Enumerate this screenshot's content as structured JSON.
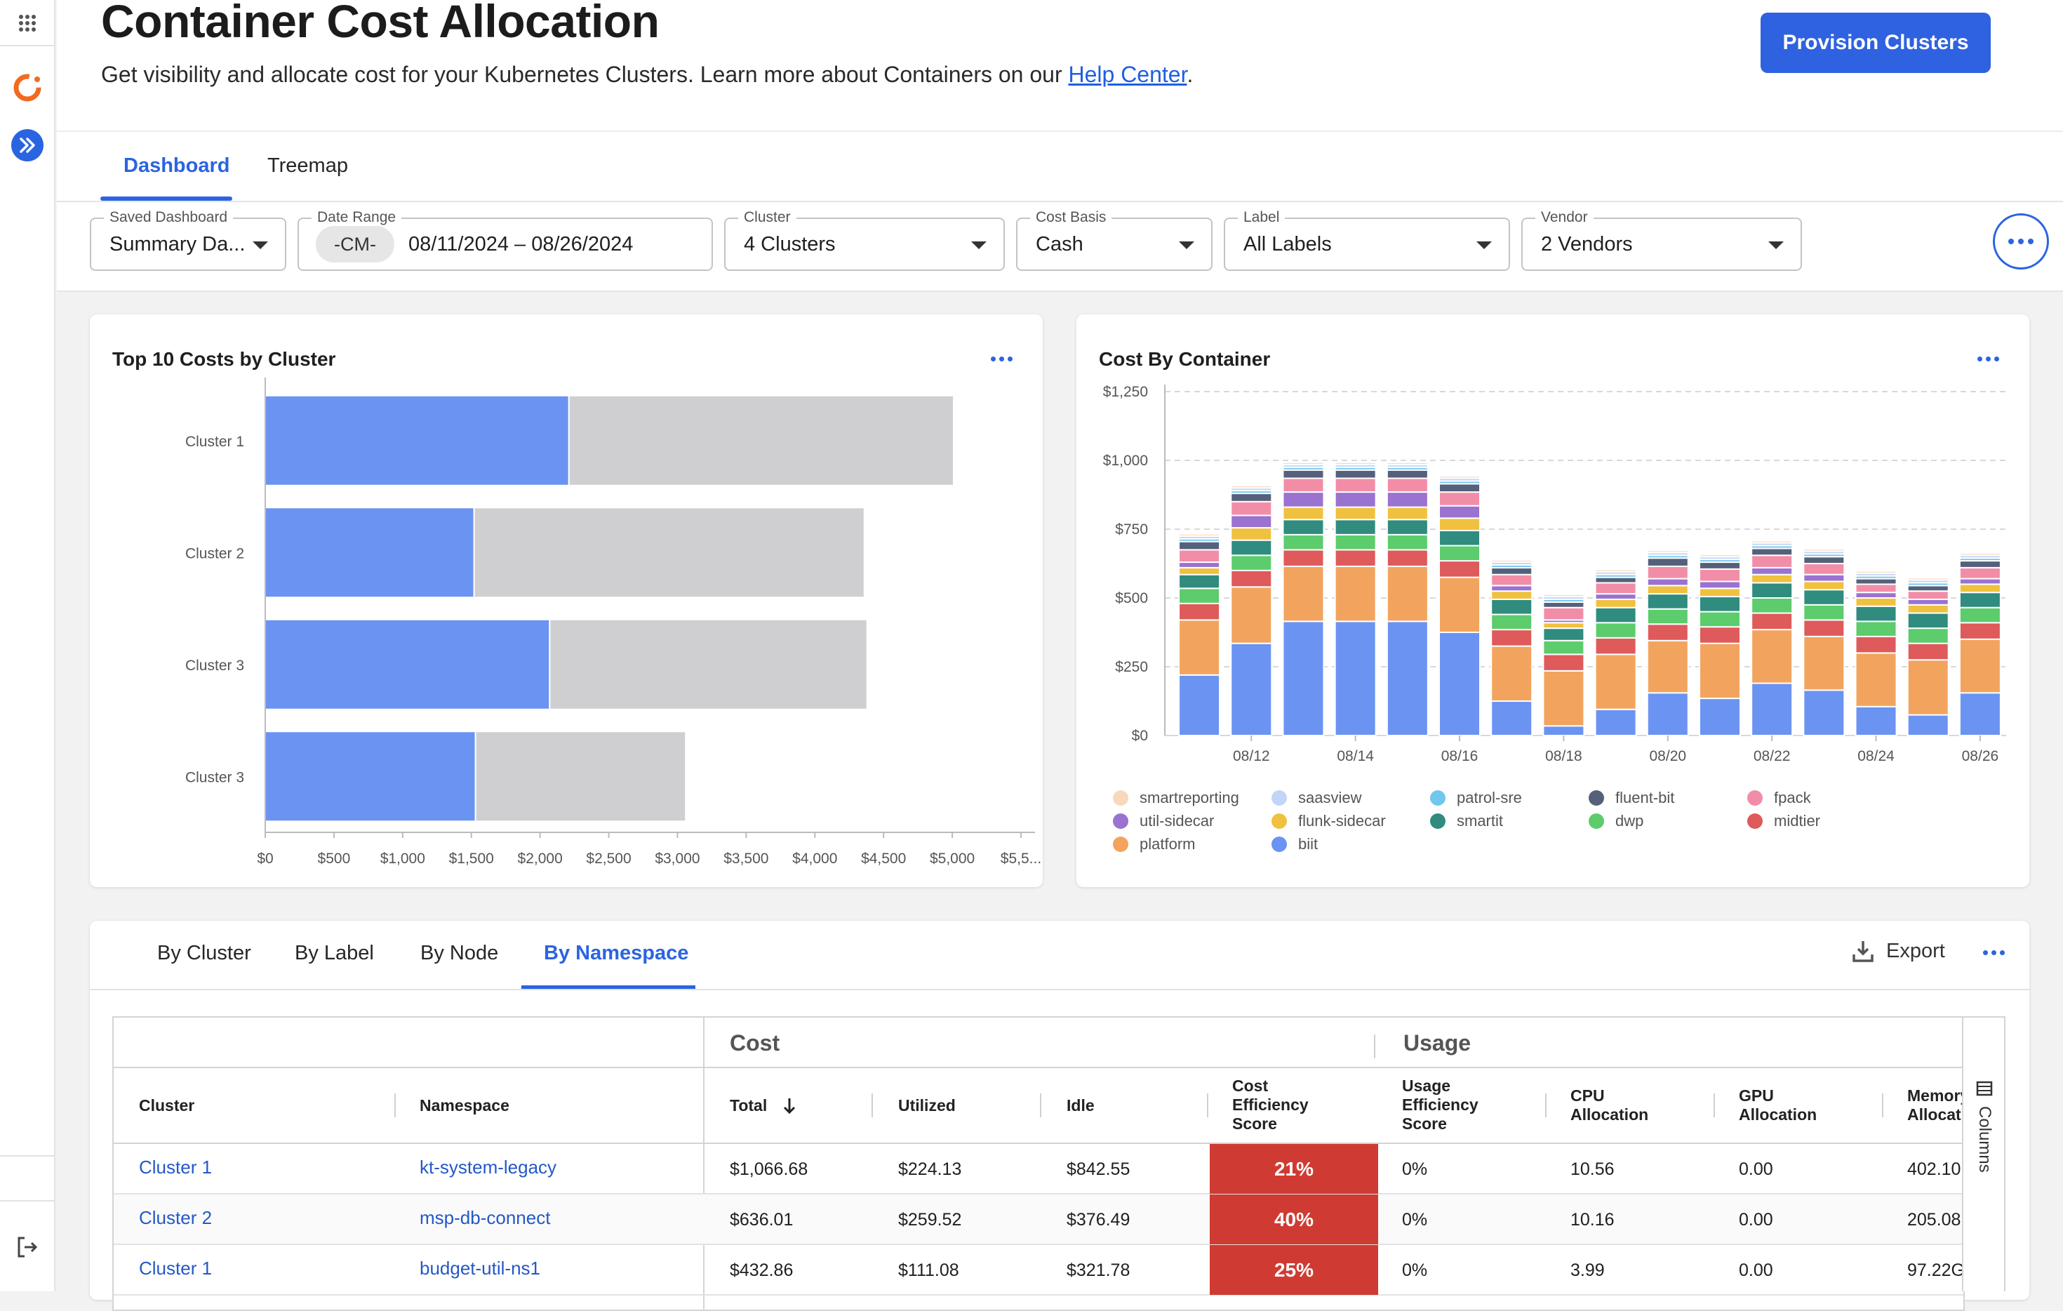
{
  "header": {
    "title": "Container Cost Allocation",
    "subtitle_text": "Get visibility and allocate cost for your Kubernetes Clusters. Learn more about Containers on our ",
    "help_link": "Help Center",
    "subtitle_end": ".",
    "provision_button": "Provision Clusters"
  },
  "tabs": [
    "Dashboard",
    "Treemap"
  ],
  "filters": {
    "saved_dashboard": {
      "label": "Saved Dashboard",
      "value": "Summary Da..."
    },
    "date_range": {
      "label": "Date Range",
      "chip": "-CM-",
      "value": "08/11/2024 – 08/26/2024"
    },
    "cluster": {
      "label": "Cluster",
      "value": "4 Clusters"
    },
    "cost_basis": {
      "label": "Cost Basis",
      "value": "Cash"
    },
    "label": {
      "label": "Label",
      "value": "All Labels"
    },
    "vendor": {
      "label": "Vendor",
      "value": "2 Vendors"
    }
  },
  "chart_data": [
    {
      "type": "bar",
      "orientation": "horizontal",
      "stacked": true,
      "title": "Top 10 Costs by Cluster",
      "categories": [
        "Cluster 1",
        "Cluster 2",
        "Cluster 3",
        "Cluster 3"
      ],
      "series": [
        {
          "values": [
            2210,
            1520,
            2070,
            1530
          ]
        },
        {
          "values": [
            2800,
            2840,
            2310,
            1530
          ]
        }
      ],
      "xlim": [
        0,
        5500
      ],
      "xticks": [
        "$0",
        "$500",
        "$1,000",
        "$1,500",
        "$2,000",
        "$2,500",
        "$3,000",
        "$3,500",
        "$4,000",
        "$4,500",
        "$5,000",
        "$5,5..."
      ],
      "colors": [
        "#6b93f2",
        "#cfcfd2"
      ]
    },
    {
      "type": "bar",
      "stacked": true,
      "title": "Cost By Container",
      "categories": [
        "08/11",
        "08/12",
        "08/13",
        "08/14",
        "08/15",
        "08/16",
        "08/17",
        "08/18",
        "08/19",
        "08/20",
        "08/21",
        "08/22",
        "08/23",
        "08/24",
        "08/25",
        "08/26"
      ],
      "x_tick_labels": [
        "08/12",
        "08/14",
        "08/16",
        "08/18",
        "08/20",
        "08/22",
        "08/24",
        "08/26"
      ],
      "yticks": [
        "$0",
        "$250",
        "$500",
        "$750",
        "$1,000",
        "$1,250"
      ],
      "ylim": [
        0,
        1250
      ],
      "series": [
        {
          "name": "biit",
          "color": "#6b93f2",
          "values": [
            220,
            335,
            415,
            415,
            415,
            375,
            125,
            35,
            95,
            155,
            135,
            190,
            165,
            105,
            75,
            155
          ]
        },
        {
          "name": "platform",
          "color": "#f2a45e",
          "values": [
            200,
            205,
            200,
            200,
            200,
            200,
            200,
            200,
            200,
            190,
            200,
            195,
            195,
            195,
            200,
            195
          ]
        },
        {
          "name": "midtier",
          "color": "#df5a5a",
          "values": [
            60,
            60,
            60,
            60,
            60,
            60,
            60,
            60,
            60,
            60,
            60,
            60,
            60,
            60,
            60,
            60
          ]
        },
        {
          "name": "dwp",
          "color": "#5ccc6c",
          "values": [
            55,
            55,
            55,
            55,
            55,
            55,
            55,
            50,
            55,
            55,
            55,
            55,
            55,
            55,
            55,
            55
          ]
        },
        {
          "name": "smartit",
          "color": "#2f8c7e",
          "values": [
            50,
            55,
            55,
            55,
            55,
            55,
            55,
            45,
            55,
            55,
            55,
            55,
            55,
            55,
            55,
            55
          ]
        },
        {
          "name": "flunk-sidecar",
          "color": "#f0c13f",
          "values": [
            25,
            45,
            45,
            45,
            45,
            45,
            30,
            20,
            30,
            30,
            30,
            30,
            30,
            30,
            30,
            30
          ]
        },
        {
          "name": "util-sidecar",
          "color": "#9a72d0",
          "values": [
            20,
            45,
            55,
            55,
            55,
            45,
            20,
            10,
            20,
            25,
            25,
            25,
            25,
            20,
            20,
            20
          ]
        },
        {
          "name": "fpack",
          "color": "#f28da8",
          "values": [
            45,
            50,
            50,
            50,
            50,
            50,
            40,
            45,
            40,
            45,
            45,
            45,
            40,
            30,
            30,
            40
          ]
        },
        {
          "name": "fluent-bit",
          "color": "#55607a",
          "values": [
            30,
            30,
            30,
            30,
            30,
            30,
            25,
            20,
            20,
            30,
            25,
            25,
            25,
            20,
            20,
            25
          ]
        },
        {
          "name": "patrol-sre",
          "color": "#72c7ec",
          "values": [
            10,
            10,
            10,
            10,
            10,
            10,
            10,
            10,
            10,
            10,
            10,
            10,
            10,
            10,
            10,
            10
          ]
        },
        {
          "name": "saasview",
          "color": "#c2d5f8",
          "values": [
            10,
            10,
            10,
            10,
            10,
            10,
            10,
            10,
            10,
            10,
            10,
            10,
            10,
            10,
            10,
            10
          ]
        },
        {
          "name": "smartreporting",
          "color": "#f8d8bb",
          "values": [
            8,
            8,
            8,
            8,
            8,
            8,
            8,
            8,
            8,
            8,
            8,
            8,
            8,
            8,
            8,
            8
          ]
        }
      ],
      "legend": [
        "smartreporting",
        "saasview",
        "patrol-sre",
        "fluent-bit",
        "fpack",
        "util-sidecar",
        "flunk-sidecar",
        "smartit",
        "dwp",
        "midtier",
        "platform",
        "biit"
      ]
    }
  ],
  "table_panel": {
    "tabs": [
      "By Cluster",
      "By Label",
      "By Node",
      "By Namespace"
    ],
    "active_tab": "By Namespace",
    "export_label": "Export",
    "groups": {
      "cost": "Cost",
      "usage": "Usage"
    },
    "headers": {
      "cluster": "Cluster",
      "namespace": "Namespace",
      "total": "Total",
      "utilized": "Utilized",
      "idle": "Idle",
      "cost_eff": [
        "Cost",
        "Efficiency",
        "Score"
      ],
      "usage_eff": [
        "Usage",
        "Efficiency",
        "Score"
      ],
      "cpu": [
        "CPU",
        "Allocation"
      ],
      "gpu": [
        "GPU",
        "Allocation"
      ],
      "memory": [
        "Memory",
        "Allocation"
      ]
    },
    "columns_label": "Columns",
    "rows": [
      {
        "cluster": "Cluster 1",
        "namespace": "kt-system-legacy",
        "total": "$1,066.68",
        "utilized": "$224.13",
        "idle": "$842.55",
        "cost_score": "21%",
        "usage_score": "0%",
        "cpu": "10.56",
        "gpu": "0.00",
        "memory": "402.10"
      },
      {
        "cluster": "Cluster 2",
        "namespace": "msp-db-connect",
        "total": "$636.01",
        "utilized": "$259.52",
        "idle": "$376.49",
        "cost_score": "40%",
        "usage_score": "0%",
        "cpu": "10.16",
        "gpu": "0.00",
        "memory": "205.08"
      },
      {
        "cluster": "Cluster 1",
        "namespace": "budget-util-ns1",
        "total": "$432.86",
        "utilized": "$111.08",
        "idle": "$321.78",
        "cost_score": "25%",
        "usage_score": "0%",
        "cpu": "3.99",
        "gpu": "0.00",
        "memory": "97.22G"
      }
    ]
  }
}
